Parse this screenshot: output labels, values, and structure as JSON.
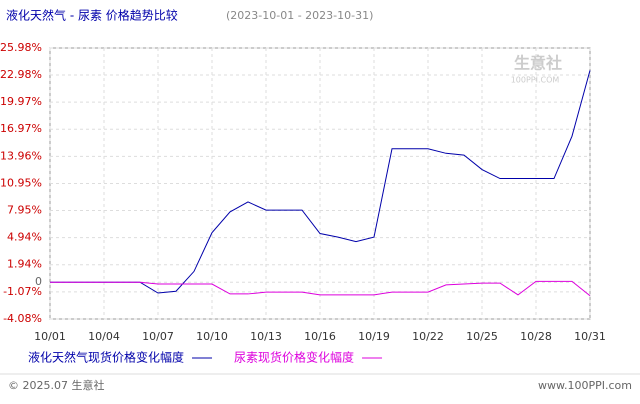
{
  "chart_data": {
    "type": "line",
    "title": "液化天然气 - 尿素 价格趋势比较",
    "subtitle": "(2023-10-01 - 2023-10-31)",
    "categories": [
      "10/01",
      null,
      null,
      "10/04",
      null,
      null,
      "10/07",
      null,
      null,
      "10/10",
      null,
      null,
      "10/13",
      null,
      null,
      "10/16",
      null,
      null,
      "10/19",
      null,
      null,
      "10/22",
      null,
      null,
      "10/25",
      null,
      null,
      "10/28",
      null,
      null,
      "10/31"
    ],
    "series": [
      {
        "name": "液化天然气现货价格变化幅度",
        "color": "#0000aa",
        "values": [
          0,
          0,
          0,
          0,
          0,
          0,
          -1.2,
          -1.0,
          1.2,
          5.5,
          7.8,
          8.9,
          8.0,
          8.0,
          8.0,
          5.4,
          5.0,
          4.5,
          5.0,
          14.8,
          14.8,
          14.8,
          14.3,
          14.1,
          12.5,
          11.5,
          11.5,
          11.5,
          11.5,
          16.2,
          23.5
        ]
      },
      {
        "name": "尿素现货价格变化幅度",
        "color": "#dd00dd",
        "values": [
          0,
          0,
          0,
          0,
          0,
          0,
          -0.2,
          -0.2,
          -0.2,
          -0.2,
          -1.3,
          -1.3,
          -1.1,
          -1.1,
          -1.1,
          -1.4,
          -1.4,
          -1.4,
          -1.4,
          -1.1,
          -1.1,
          -1.1,
          -0.3,
          -0.2,
          -0.1,
          -0.1,
          -1.4,
          0.1,
          0.1,
          0.1,
          -1.5
        ]
      }
    ],
    "ylim": [
      -4.08,
      25.98
    ],
    "yticks": [
      {
        "value": -4.08,
        "label": "-4.08%"
      },
      {
        "value": -1.07,
        "label": "-1.07%"
      },
      0,
      {
        "value": 1.94,
        "label": "1.94%"
      },
      {
        "value": 4.94,
        "label": "4.94%"
      },
      {
        "value": 7.95,
        "label": "7.95%"
      },
      {
        "value": 10.95,
        "label": "10.95%"
      },
      {
        "value": 13.96,
        "label": "13.96%"
      },
      {
        "value": 16.97,
        "label": "16.97%"
      },
      {
        "value": 19.97,
        "label": "19.97%"
      },
      {
        "value": 22.98,
        "label": "22.98%"
      },
      {
        "value": 25.98,
        "label": "25.98%"
      }
    ],
    "grid": true,
    "watermark": "生意社",
    "watermark_sub": "100PPI.COM",
    "footer_left": "© 2025.07 生意社",
    "footer_right": "www.100PPI.com"
  }
}
